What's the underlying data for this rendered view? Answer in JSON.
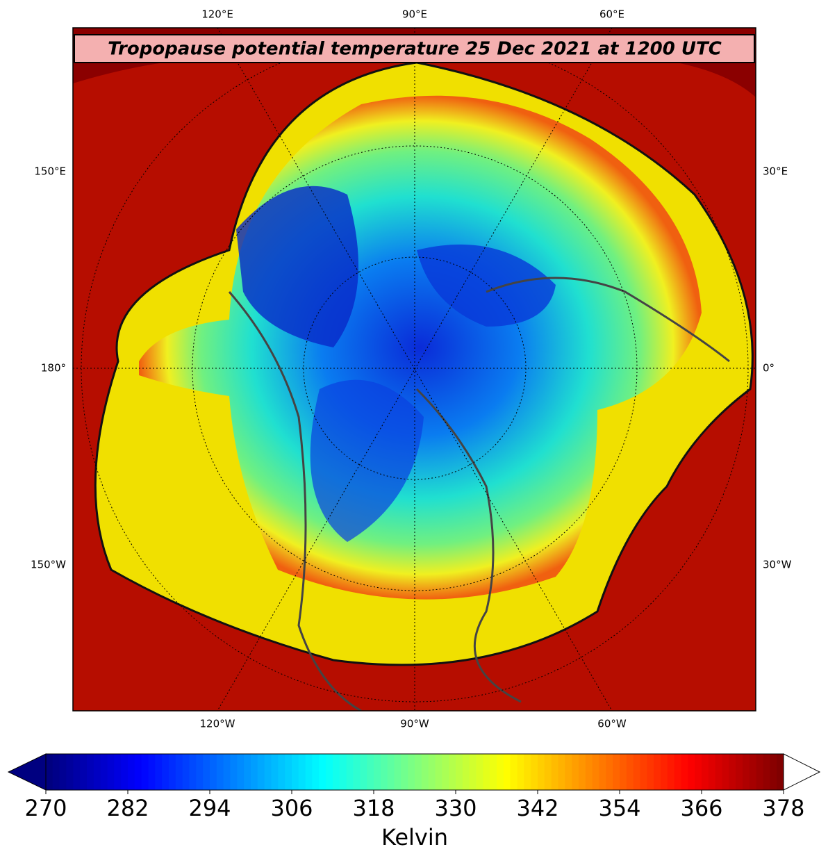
{
  "map": {
    "title": "Tropopause potential temperature 25 Dec 2021 at 1200 UTC",
    "top_labels": [
      "120°E",
      "90°E",
      "60°E"
    ],
    "bottom_labels": [
      "120°W",
      "90°W",
      "60°W"
    ],
    "left_labels": [
      "150°E",
      "180°",
      "150°W"
    ],
    "right_labels": [
      "30°E",
      "0°",
      "30°W"
    ]
  },
  "colorbar": {
    "label": "Kelvin",
    "colormap": "jet",
    "extend": "both",
    "lim": [
      270,
      378
    ],
    "ticks": [
      270,
      282,
      294,
      306,
      318,
      330,
      342,
      354,
      366,
      378
    ]
  }
}
